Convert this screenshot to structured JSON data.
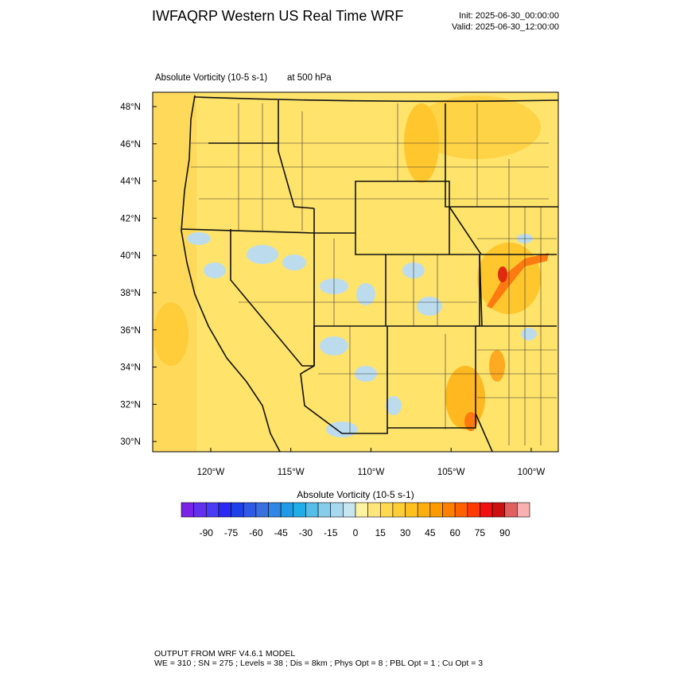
{
  "header": {
    "title": "IWFAQRP Western US Real Time WRF",
    "init": "Init: 2025-06-30_00:00:00",
    "valid": "Valid: 2025-06-30_12:00:00"
  },
  "map": {
    "field": "Absolute Vorticity   (10-5 s-1)",
    "level": "at   500 hPa",
    "lat_range": [
      29.45,
      48.77
    ],
    "lon_range": [
      -123.62,
      -98.31
    ],
    "lat_ticks": [
      {
        "value": 48,
        "label": "48°N"
      },
      {
        "value": 46,
        "label": "46°N"
      },
      {
        "value": 44,
        "label": "44°N"
      },
      {
        "value": 42,
        "label": "42°N"
      },
      {
        "value": 40,
        "label": "40°N"
      },
      {
        "value": 38,
        "label": "38°N"
      },
      {
        "value": 36,
        "label": "36°N"
      },
      {
        "value": 34,
        "label": "34°N"
      },
      {
        "value": 32,
        "label": "32°N"
      },
      {
        "value": 30,
        "label": "30°N"
      }
    ],
    "lon_ticks": [
      {
        "value": -120,
        "label": "120°W"
      },
      {
        "value": -115,
        "label": "115°W"
      },
      {
        "value": -110,
        "label": "110°W"
      },
      {
        "value": -105,
        "label": "105°W"
      },
      {
        "value": -100,
        "label": "100°W"
      }
    ]
  },
  "colorbar": {
    "title": "Absolute Vorticity  (10-5 s-1)",
    "range": [
      -105,
      105
    ],
    "ticks": [
      -90,
      -75,
      -60,
      -45,
      -30,
      -15,
      0,
      15,
      30,
      45,
      60,
      75,
      90
    ],
    "colors": [
      "#7a22e6",
      "#6430f0",
      "#4a3cf5",
      "#2a2af0",
      "#1e40e8",
      "#2e5ae6",
      "#3a6fe0",
      "#2f86e6",
      "#1e9ae6",
      "#21aee8",
      "#56bde8",
      "#86cdeb",
      "#a8d8ee",
      "#c8e6f2",
      "#fff2a0",
      "#ffe67a",
      "#ffda50",
      "#ffcd35",
      "#ffc020",
      "#ffae10",
      "#ff9a00",
      "#ff8000",
      "#ff6000",
      "#ff3a00",
      "#f01010",
      "#cc1010",
      "#e06060",
      "#f8b0b0"
    ]
  },
  "footer": {
    "line1": "OUTPUT FROM WRF V4.6.1 MODEL",
    "line2": "WE = 310 ; SN = 275 ; Levels = 38 ; Dis = 8km ; Phys Opt = 8 ; PBL Opt = 1 ; Cu Opt = 3"
  }
}
